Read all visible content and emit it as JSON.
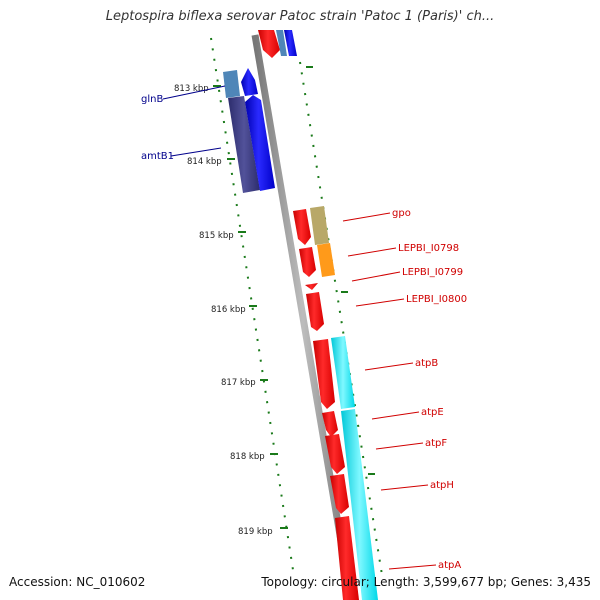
{
  "title": "Leptospira biflexa serovar Patoc strain 'Patoc 1 (Paris)' ch...",
  "footer": {
    "accession": "Accession: NC_010602",
    "topology": "Topology: circular; Length: 3,599,677 bp; Genes: 3,435"
  },
  "ticks": [
    "813 kbp",
    "814 kbp",
    "815 kbp",
    "816 kbp",
    "817 kbp",
    "818 kbp",
    "819 kbp"
  ],
  "genes_left": [
    "glnB",
    "amtB1"
  ],
  "genes_right": [
    "gpo",
    "LEPBI_I0798",
    "LEPBI_I0799",
    "LEPBI_I0800",
    "atpB",
    "atpE",
    "atpF",
    "atpH",
    "atpA"
  ],
  "colors": {
    "backbone": "#909090",
    "tick": "#1a7a1a",
    "left_label": "#00008b",
    "right_label": "#d00000",
    "red_cds": "#ff0000",
    "blue_cds": "#0000ff",
    "navy_block": "#3f3f86",
    "steel_block": "#4f86b8",
    "cyan_block": "#00e8f0",
    "khaki_block": "#b8a868",
    "orange_block": "#ff9a1a"
  }
}
